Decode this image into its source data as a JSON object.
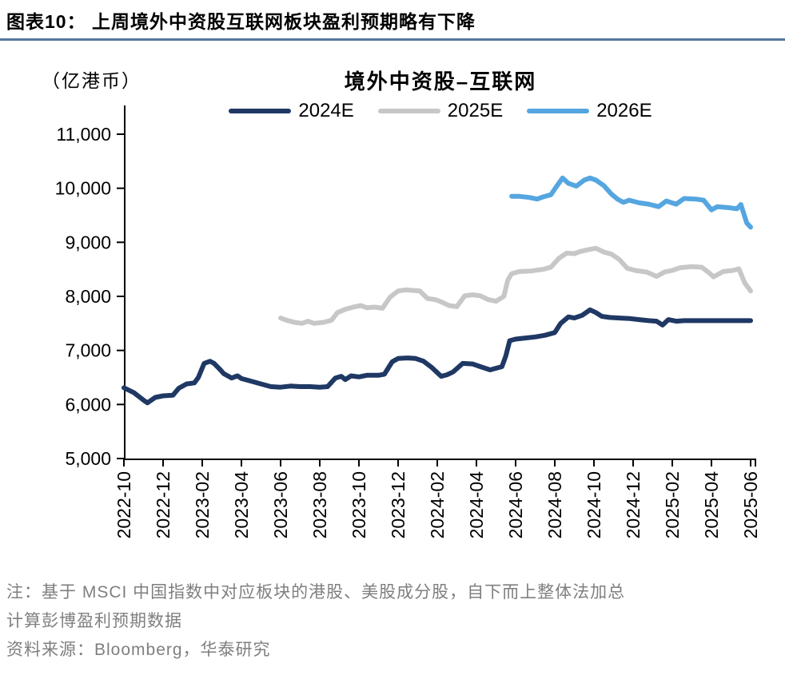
{
  "header": {
    "title": "图表10：  上周境外中资股互联网板块盈利预期略有下降"
  },
  "chart": {
    "unit_label": "（亿港币）",
    "title": "境外中资股–互联网"
  },
  "legend": [
    {
      "label": "2024E",
      "color": "#1F3864"
    },
    {
      "label": "2025E",
      "color": "#C7C7C7"
    },
    {
      "label": "2026E",
      "color": "#55A6E0"
    }
  ],
  "notes": {
    "line1": "注：基于 MSCI 中国指数中对应板块的港股、美股成分股，自下而上整体法加总",
    "line2": "计算彭博盈利预期数据",
    "source": "资料来源：Bloomberg，华泰研究"
  },
  "chart_data": {
    "type": "line",
    "title": "境外中资股–互联网",
    "unit": "亿港币",
    "legend_position": "top-center",
    "grid": false,
    "ylim": [
      5000,
      11000
    ],
    "y_ticks": [
      5000,
      6000,
      7000,
      8000,
      9000,
      10000,
      11000
    ],
    "x_unit": "months since 2022-10",
    "x_tick_month_indices": [
      0,
      2,
      4,
      6,
      8,
      10,
      12,
      14,
      16,
      18,
      20,
      22,
      24,
      26,
      28,
      30,
      32
    ],
    "x_tick_labels": [
      "2022-10",
      "2022-12",
      "2023-02",
      "2023-04",
      "2023-06",
      "2023-08",
      "2023-10",
      "2023-12",
      "2024-02",
      "2024-04",
      "2024-06",
      "2024-08",
      "2024-10",
      "2024-12",
      "2025-02",
      "2025-04",
      "2025-06"
    ],
    "series": [
      {
        "name": "2024E",
        "color": "#1F3864",
        "points": [
          [
            0,
            6310
          ],
          [
            0.5,
            6220
          ],
          [
            1,
            6080
          ],
          [
            1.2,
            6030
          ],
          [
            1.6,
            6130
          ],
          [
            2,
            6160
          ],
          [
            2.5,
            6170
          ],
          [
            2.8,
            6300
          ],
          [
            3.2,
            6380
          ],
          [
            3.6,
            6400
          ],
          [
            3.8,
            6500
          ],
          [
            4.1,
            6760
          ],
          [
            4.4,
            6800
          ],
          [
            4.6,
            6760
          ],
          [
            4.9,
            6650
          ],
          [
            5.1,
            6570
          ],
          [
            5.5,
            6490
          ],
          [
            5.8,
            6530
          ],
          [
            6,
            6480
          ],
          [
            6.3,
            6450
          ],
          [
            7,
            6380
          ],
          [
            7.5,
            6330
          ],
          [
            8,
            6320
          ],
          [
            8.5,
            6340
          ],
          [
            9,
            6330
          ],
          [
            9.5,
            6330
          ],
          [
            10,
            6320
          ],
          [
            10.4,
            6330
          ],
          [
            10.8,
            6490
          ],
          [
            11.1,
            6520
          ],
          [
            11.3,
            6460
          ],
          [
            11.6,
            6530
          ],
          [
            12,
            6510
          ],
          [
            12.4,
            6540
          ],
          [
            13,
            6540
          ],
          [
            13.3,
            6560
          ],
          [
            13.7,
            6790
          ],
          [
            14,
            6850
          ],
          [
            14.5,
            6860
          ],
          [
            14.9,
            6850
          ],
          [
            15.3,
            6800
          ],
          [
            15.7,
            6690
          ],
          [
            16.2,
            6520
          ],
          [
            16.5,
            6550
          ],
          [
            16.8,
            6600
          ],
          [
            17.3,
            6760
          ],
          [
            17.8,
            6750
          ],
          [
            18.2,
            6700
          ],
          [
            18.7,
            6640
          ],
          [
            19,
            6670
          ],
          [
            19.3,
            6700
          ],
          [
            19.5,
            6900
          ],
          [
            19.7,
            7180
          ],
          [
            20,
            7210
          ],
          [
            20.5,
            7230
          ],
          [
            21,
            7250
          ],
          [
            21.5,
            7280
          ],
          [
            22,
            7330
          ],
          [
            22.3,
            7500
          ],
          [
            22.7,
            7620
          ],
          [
            23,
            7600
          ],
          [
            23.4,
            7650
          ],
          [
            23.8,
            7750
          ],
          [
            24.1,
            7700
          ],
          [
            24.4,
            7630
          ],
          [
            24.8,
            7610
          ],
          [
            25.3,
            7600
          ],
          [
            25.8,
            7590
          ],
          [
            26.3,
            7570
          ],
          [
            26.8,
            7550
          ],
          [
            27.2,
            7540
          ],
          [
            27.5,
            7470
          ],
          [
            27.8,
            7570
          ],
          [
            28.2,
            7540
          ],
          [
            28.6,
            7550
          ],
          [
            29,
            7550
          ],
          [
            30,
            7550
          ],
          [
            31,
            7550
          ],
          [
            32,
            7550
          ]
        ]
      },
      {
        "name": "2025E",
        "color": "#C7C7C7",
        "points": [
          [
            8,
            7600
          ],
          [
            8.3,
            7560
          ],
          [
            8.7,
            7520
          ],
          [
            9.1,
            7500
          ],
          [
            9.4,
            7540
          ],
          [
            9.7,
            7500
          ],
          [
            10.2,
            7520
          ],
          [
            10.6,
            7560
          ],
          [
            10.9,
            7700
          ],
          [
            11.3,
            7760
          ],
          [
            11.8,
            7810
          ],
          [
            12.1,
            7830
          ],
          [
            12.4,
            7790
          ],
          [
            12.8,
            7800
          ],
          [
            13.2,
            7780
          ],
          [
            13.6,
            7990
          ],
          [
            14,
            8100
          ],
          [
            14.4,
            8120
          ],
          [
            14.8,
            8110
          ],
          [
            15.1,
            8100
          ],
          [
            15.5,
            7960
          ],
          [
            15.9,
            7940
          ],
          [
            16.2,
            7900
          ],
          [
            16.6,
            7830
          ],
          [
            17,
            7810
          ],
          [
            17.4,
            8010
          ],
          [
            17.8,
            8030
          ],
          [
            18.2,
            8010
          ],
          [
            18.6,
            7940
          ],
          [
            19,
            7910
          ],
          [
            19.4,
            8000
          ],
          [
            19.6,
            8300
          ],
          [
            19.8,
            8420
          ],
          [
            20.2,
            8460
          ],
          [
            20.8,
            8470
          ],
          [
            21.4,
            8500
          ],
          [
            21.8,
            8540
          ],
          [
            22.2,
            8700
          ],
          [
            22.6,
            8800
          ],
          [
            23,
            8790
          ],
          [
            23.3,
            8830
          ],
          [
            23.8,
            8870
          ],
          [
            24.1,
            8890
          ],
          [
            24.5,
            8820
          ],
          [
            24.9,
            8780
          ],
          [
            25.3,
            8680
          ],
          [
            25.7,
            8520
          ],
          [
            26.1,
            8480
          ],
          [
            26.7,
            8450
          ],
          [
            27.2,
            8370
          ],
          [
            27.6,
            8450
          ],
          [
            28,
            8480
          ],
          [
            28.4,
            8530
          ],
          [
            29,
            8550
          ],
          [
            29.5,
            8540
          ],
          [
            29.9,
            8430
          ],
          [
            30.1,
            8360
          ],
          [
            30.6,
            8460
          ],
          [
            31.1,
            8480
          ],
          [
            31.4,
            8510
          ],
          [
            31.7,
            8250
          ],
          [
            32,
            8100
          ]
        ]
      },
      {
        "name": "2026E",
        "color": "#55A6E0",
        "points": [
          [
            19.8,
            9850
          ],
          [
            20.2,
            9850
          ],
          [
            20.7,
            9830
          ],
          [
            21.1,
            9800
          ],
          [
            21.4,
            9840
          ],
          [
            21.8,
            9880
          ],
          [
            22.1,
            10040
          ],
          [
            22.4,
            10190
          ],
          [
            22.7,
            10090
          ],
          [
            23.1,
            10040
          ],
          [
            23.5,
            10150
          ],
          [
            23.8,
            10190
          ],
          [
            24.1,
            10150
          ],
          [
            24.5,
            10050
          ],
          [
            24.9,
            9890
          ],
          [
            25.2,
            9800
          ],
          [
            25.5,
            9740
          ],
          [
            25.8,
            9780
          ],
          [
            26.3,
            9730
          ],
          [
            26.8,
            9705
          ],
          [
            27.3,
            9660
          ],
          [
            27.7,
            9765
          ],
          [
            28.2,
            9705
          ],
          [
            28.6,
            9810
          ],
          [
            29.2,
            9800
          ],
          [
            29.6,
            9780
          ],
          [
            30,
            9600
          ],
          [
            30.3,
            9660
          ],
          [
            30.9,
            9640
          ],
          [
            31.3,
            9620
          ],
          [
            31.5,
            9700
          ],
          [
            31.8,
            9360
          ],
          [
            32,
            9280
          ]
        ]
      }
    ]
  }
}
